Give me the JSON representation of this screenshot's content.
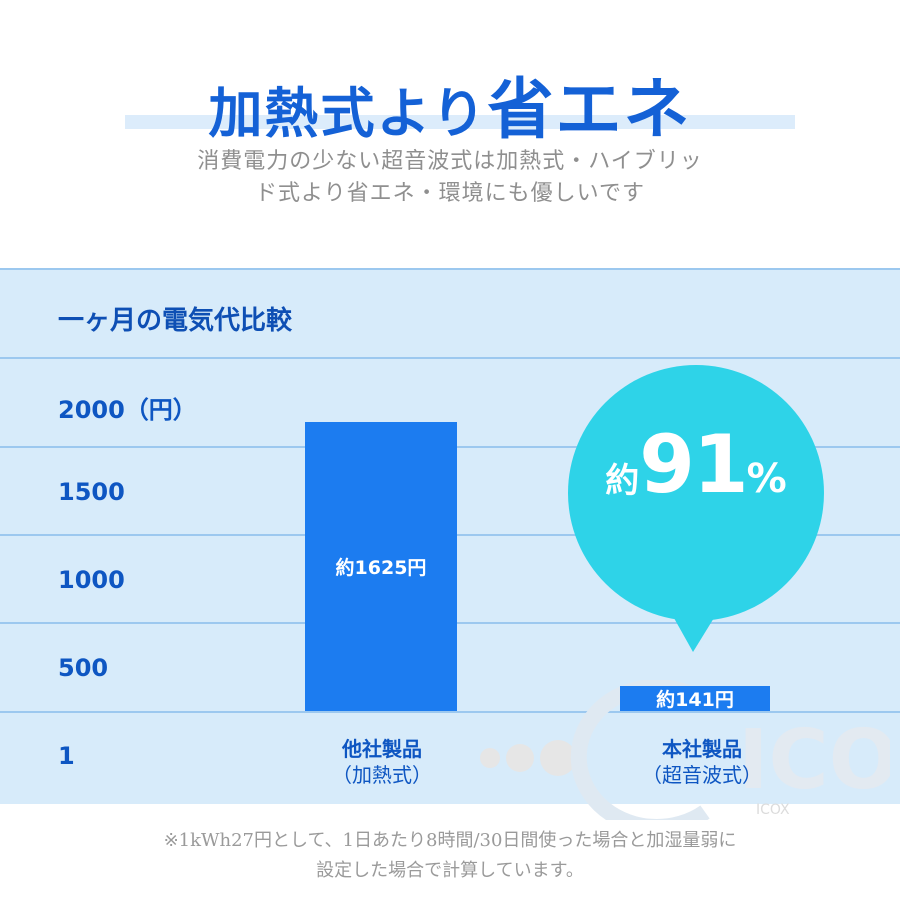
{
  "header": {
    "title_part1": "加熱式より",
    "title_part2": "省エネ",
    "subtitle_line1": "消費電力の少ない超音波式は加熱式・ハイブリッ",
    "subtitle_line2": "ド式より省エネ・環境にも優しいです"
  },
  "chart_data": {
    "type": "bar",
    "title": "一ヶ月の電気代比較",
    "yunit": "（円）",
    "ytick_labels": [
      "2000",
      "1500",
      "1000",
      "500",
      "1"
    ],
    "ylim": [
      0,
      2000
    ],
    "categories": [
      {
        "name": "他社製品",
        "sub": "（加熱式）"
      },
      {
        "name": "本社製品",
        "sub": "（超音波式）"
      }
    ],
    "values": [
      1625,
      141
    ],
    "data_labels": [
      "約1625円",
      "約141円"
    ],
    "grid": true,
    "annotation": {
      "prefix": "約",
      "value": "91",
      "unit": "%"
    }
  },
  "footnote": {
    "line1": "※1kWh27円として、1日あたり8時間/30日間使った場合と加湿量弱に",
    "line2": "設定した場合で計算しています。"
  },
  "watermark": {
    "text": "ICOX",
    "small_text": "ICOX"
  },
  "colors": {
    "accent": "#1461d6",
    "bar": "#1c7cf0",
    "bubble": "#2ed3e8",
    "panel": "#d7ebfa"
  }
}
